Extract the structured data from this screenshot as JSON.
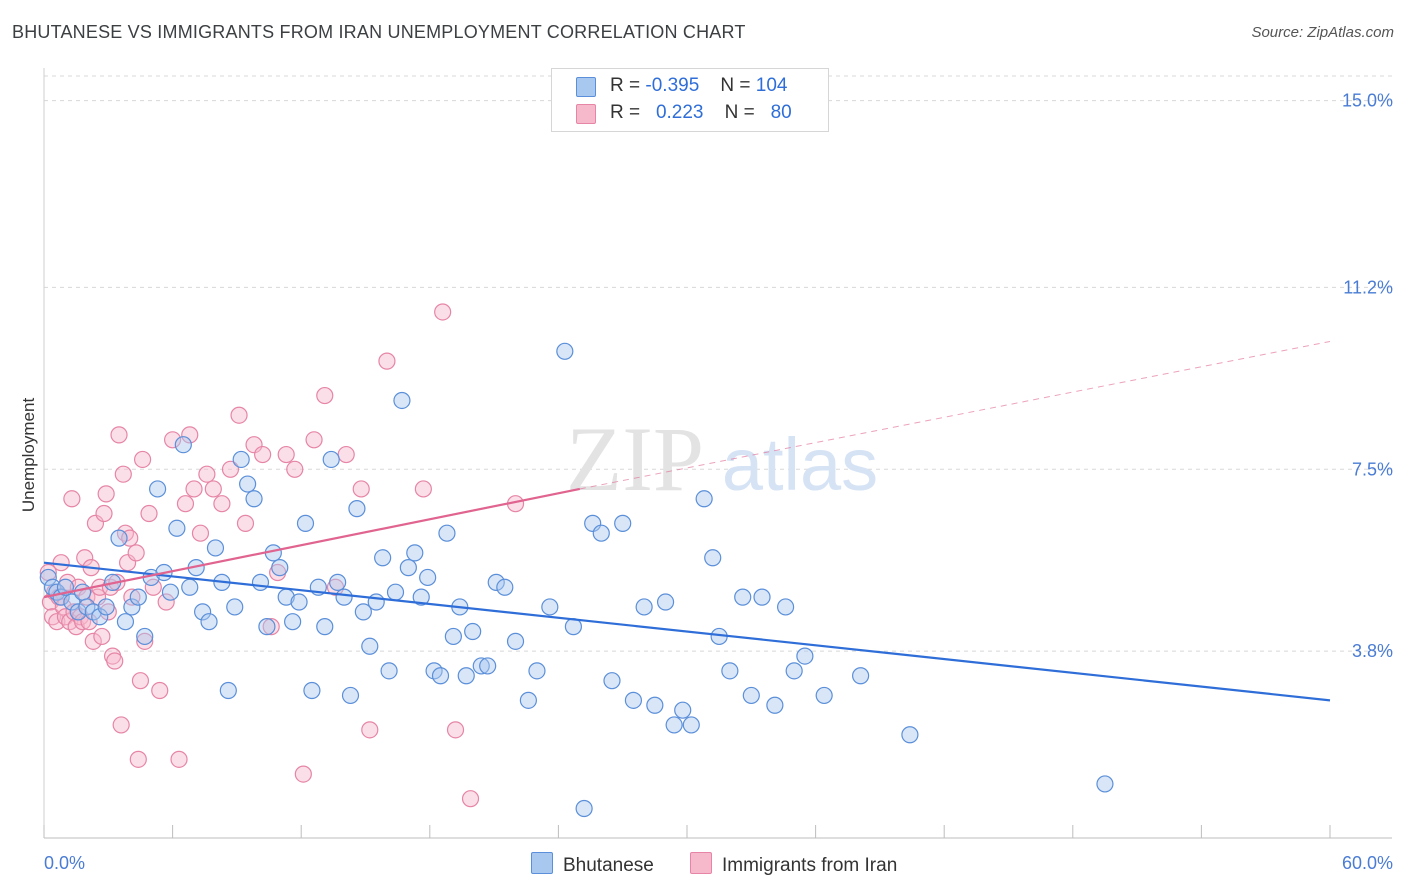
{
  "title": "BHUTANESE VS IMMIGRANTS FROM IRAN UNEMPLOYMENT CORRELATION CHART",
  "source": "Source: ZipAtlas.com",
  "watermark": {
    "zip": "ZIP",
    "atlas": "atlas"
  },
  "colors": {
    "blue_fill": "#a8c8f0",
    "blue_stroke": "#5b8fd9",
    "blue_line": "#2f6ed8",
    "pink_fill": "#f6b8cb",
    "pink_stroke": "#e685a6",
    "pink_line": "#e0648f",
    "grid": "#d8d8d8",
    "tick_label": "#4a7cd4"
  },
  "legend": {
    "rows": [
      {
        "r_label": "R =",
        "r_value": "-0.395",
        "n_label": "N =",
        "n_value": "104",
        "color": "#a8c8f0",
        "border": "#5b8fd9"
      },
      {
        "r_label": "R =",
        "r_value": "0.223",
        "n_label": "N =",
        "n_value": "80",
        "color": "#f6b8cb",
        "border": "#e685a6"
      }
    ]
  },
  "bottom_legend": [
    {
      "label": "Bhutanese",
      "color": "#a8c8f0",
      "border": "#5b8fd9"
    },
    {
      "label": "Immigrants from Iran",
      "color": "#f6b8cb",
      "border": "#e685a6"
    }
  ],
  "chart_data": {
    "type": "scatter",
    "title": "BHUTANESE VS IMMIGRANTS FROM IRAN UNEMPLOYMENT CORRELATION CHART",
    "xlabel": "",
    "ylabel": "Unemployment",
    "xlim": [
      0,
      60
    ],
    "ylim": [
      0,
      15.5
    ],
    "x_tick_labels": [
      "0.0%",
      "60.0%"
    ],
    "y_ticks": [
      3.8,
      7.5,
      11.2,
      15.0
    ],
    "y_tick_labels": [
      "3.8%",
      "7.5%",
      "11.2%",
      "15.0%"
    ],
    "grid": "horizontal dashed",
    "legend_placement": "top-center",
    "series": [
      {
        "name": "Bhutanese",
        "r": -0.395,
        "n": 104,
        "trend": {
          "x": [
            0,
            60
          ],
          "y": [
            5.6,
            2.8
          ]
        },
        "points": [
          [
            0.2,
            5.3
          ],
          [
            0.4,
            5.1
          ],
          [
            0.6,
            5.0
          ],
          [
            0.8,
            4.9
          ],
          [
            1.0,
            5.1
          ],
          [
            1.3,
            4.8
          ],
          [
            1.6,
            4.6
          ],
          [
            1.8,
            5.0
          ],
          [
            2.0,
            4.7
          ],
          [
            2.3,
            4.6
          ],
          [
            2.6,
            4.5
          ],
          [
            2.9,
            4.7
          ],
          [
            3.2,
            5.2
          ],
          [
            3.5,
            6.1
          ],
          [
            3.8,
            4.4
          ],
          [
            4.1,
            4.7
          ],
          [
            4.4,
            4.9
          ],
          [
            4.7,
            4.1
          ],
          [
            5.0,
            5.3
          ],
          [
            5.3,
            7.1
          ],
          [
            5.6,
            5.4
          ],
          [
            5.9,
            5.0
          ],
          [
            6.2,
            6.3
          ],
          [
            6.5,
            8.0
          ],
          [
            6.8,
            5.1
          ],
          [
            7.1,
            5.5
          ],
          [
            7.4,
            4.6
          ],
          [
            7.7,
            4.4
          ],
          [
            8.0,
            5.9
          ],
          [
            8.3,
            5.2
          ],
          [
            8.6,
            3.0
          ],
          [
            8.9,
            4.7
          ],
          [
            9.2,
            7.7
          ],
          [
            9.5,
            7.2
          ],
          [
            9.8,
            6.9
          ],
          [
            10.1,
            5.2
          ],
          [
            10.4,
            4.3
          ],
          [
            10.7,
            5.8
          ],
          [
            11.0,
            5.5
          ],
          [
            11.3,
            4.9
          ],
          [
            11.6,
            4.4
          ],
          [
            11.9,
            4.8
          ],
          [
            12.2,
            6.4
          ],
          [
            12.5,
            3.0
          ],
          [
            12.8,
            5.1
          ],
          [
            13.1,
            4.3
          ],
          [
            13.4,
            7.7
          ],
          [
            13.7,
            5.2
          ],
          [
            14.0,
            4.9
          ],
          [
            14.3,
            2.9
          ],
          [
            14.6,
            6.7
          ],
          [
            14.9,
            4.6
          ],
          [
            15.2,
            3.9
          ],
          [
            15.5,
            4.8
          ],
          [
            15.8,
            5.7
          ],
          [
            16.1,
            3.4
          ],
          [
            16.4,
            5.0
          ],
          [
            16.7,
            8.9
          ],
          [
            17.0,
            5.5
          ],
          [
            17.3,
            5.8
          ],
          [
            17.6,
            4.9
          ],
          [
            17.9,
            5.3
          ],
          [
            18.2,
            3.4
          ],
          [
            18.5,
            3.3
          ],
          [
            18.8,
            6.2
          ],
          [
            19.1,
            4.1
          ],
          [
            19.4,
            4.7
          ],
          [
            19.7,
            3.3
          ],
          [
            20.0,
            4.2
          ],
          [
            20.4,
            3.5
          ],
          [
            20.7,
            3.5
          ],
          [
            21.1,
            5.2
          ],
          [
            21.5,
            5.1
          ],
          [
            22.0,
            4.0
          ],
          [
            22.6,
            2.8
          ],
          [
            23.0,
            3.4
          ],
          [
            23.6,
            4.7
          ],
          [
            24.3,
            9.9
          ],
          [
            24.7,
            4.3
          ],
          [
            25.2,
            0.6
          ],
          [
            25.6,
            6.4
          ],
          [
            26.0,
            6.2
          ],
          [
            26.5,
            3.2
          ],
          [
            27.0,
            6.4
          ],
          [
            27.5,
            2.8
          ],
          [
            28.0,
            4.7
          ],
          [
            28.5,
            2.7
          ],
          [
            29.0,
            4.8
          ],
          [
            29.4,
            2.3
          ],
          [
            29.8,
            2.6
          ],
          [
            30.2,
            2.3
          ],
          [
            30.8,
            6.9
          ],
          [
            31.2,
            5.7
          ],
          [
            31.5,
            4.1
          ],
          [
            32.0,
            3.4
          ],
          [
            32.6,
            4.9
          ],
          [
            33.0,
            2.9
          ],
          [
            33.5,
            4.9
          ],
          [
            34.1,
            2.7
          ],
          [
            34.6,
            4.7
          ],
          [
            35.0,
            3.4
          ],
          [
            35.5,
            3.7
          ],
          [
            36.4,
            2.9
          ],
          [
            38.1,
            3.3
          ],
          [
            40.4,
            2.1
          ],
          [
            49.5,
            1.1
          ]
        ]
      },
      {
        "name": "Immigrants from Iran",
        "r": 0.223,
        "n": 80,
        "trend": {
          "x": [
            0,
            25
          ],
          "y": [
            4.9,
            7.1
          ]
        },
        "trend_extension": {
          "x": [
            25,
            60
          ],
          "y": [
            7.1,
            10.1
          ]
        },
        "points": [
          [
            0.2,
            5.4
          ],
          [
            0.3,
            4.8
          ],
          [
            0.4,
            4.5
          ],
          [
            0.5,
            5.0
          ],
          [
            0.6,
            4.4
          ],
          [
            0.7,
            4.9
          ],
          [
            0.8,
            5.6
          ],
          [
            0.9,
            4.7
          ],
          [
            1.0,
            4.5
          ],
          [
            1.1,
            5.2
          ],
          [
            1.2,
            4.4
          ],
          [
            1.3,
            6.9
          ],
          [
            1.4,
            4.6
          ],
          [
            1.5,
            4.3
          ],
          [
            1.6,
            5.1
          ],
          [
            1.7,
            4.5
          ],
          [
            1.8,
            4.4
          ],
          [
            1.9,
            5.7
          ],
          [
            2.0,
            4.9
          ],
          [
            2.1,
            4.4
          ],
          [
            2.2,
            5.5
          ],
          [
            2.3,
            4.0
          ],
          [
            2.4,
            6.4
          ],
          [
            2.5,
            4.9
          ],
          [
            2.6,
            5.1
          ],
          [
            2.7,
            4.1
          ],
          [
            2.8,
            6.6
          ],
          [
            2.9,
            7.0
          ],
          [
            3.0,
            4.6
          ],
          [
            3.1,
            5.1
          ],
          [
            3.2,
            3.7
          ],
          [
            3.3,
            3.6
          ],
          [
            3.4,
            5.2
          ],
          [
            3.5,
            8.2
          ],
          [
            3.6,
            2.3
          ],
          [
            3.7,
            7.4
          ],
          [
            3.8,
            6.2
          ],
          [
            3.9,
            5.6
          ],
          [
            4.0,
            6.1
          ],
          [
            4.1,
            4.9
          ],
          [
            4.3,
            5.8
          ],
          [
            4.4,
            1.6
          ],
          [
            4.5,
            3.2
          ],
          [
            4.6,
            7.7
          ],
          [
            4.7,
            4.0
          ],
          [
            4.9,
            6.6
          ],
          [
            5.1,
            5.1
          ],
          [
            5.4,
            3.0
          ],
          [
            5.7,
            4.8
          ],
          [
            6.0,
            8.1
          ],
          [
            6.3,
            1.6
          ],
          [
            6.6,
            6.8
          ],
          [
            6.8,
            8.2
          ],
          [
            7.0,
            7.1
          ],
          [
            7.3,
            6.2
          ],
          [
            7.6,
            7.4
          ],
          [
            7.9,
            7.1
          ],
          [
            8.3,
            6.8
          ],
          [
            8.7,
            7.5
          ],
          [
            9.1,
            8.6
          ],
          [
            9.4,
            6.4
          ],
          [
            9.8,
            8.0
          ],
          [
            10.2,
            7.8
          ],
          [
            10.6,
            4.3
          ],
          [
            10.9,
            5.4
          ],
          [
            11.3,
            7.8
          ],
          [
            11.7,
            7.5
          ],
          [
            12.1,
            1.3
          ],
          [
            12.6,
            8.1
          ],
          [
            13.1,
            9.0
          ],
          [
            13.6,
            5.1
          ],
          [
            14.1,
            7.8
          ],
          [
            14.8,
            7.1
          ],
          [
            15.2,
            2.2
          ],
          [
            16.0,
            9.7
          ],
          [
            17.7,
            7.1
          ],
          [
            18.6,
            10.7
          ],
          [
            19.2,
            2.2
          ],
          [
            19.9,
            0.8
          ],
          [
            22.0,
            6.8
          ]
        ]
      }
    ]
  }
}
